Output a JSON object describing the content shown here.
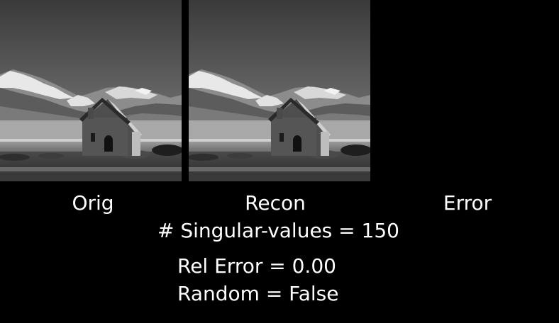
{
  "window": {
    "background_color": "#000000",
    "text_color": "#ffffff"
  },
  "panels": {
    "original": {
      "caption": "Orig",
      "image": "grayscale-church-mountain-landscape"
    },
    "reconstruction": {
      "caption": "Recon",
      "image": "grayscale-church-mountain-landscape"
    },
    "error": {
      "caption": "Error",
      "image": "black-error-map"
    }
  },
  "stats": {
    "singular_values_line": "# Singular-values = 150",
    "rel_error_line": "Rel Error = 0.00",
    "random_line": "Random = False"
  }
}
